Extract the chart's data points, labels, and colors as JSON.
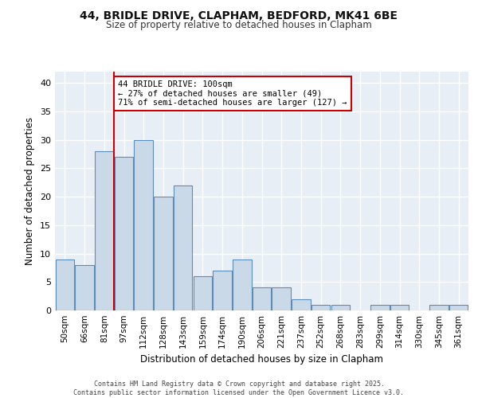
{
  "title1": "44, BRIDLE DRIVE, CLAPHAM, BEDFORD, MK41 6BE",
  "title2": "Size of property relative to detached houses in Clapham",
  "xlabel": "Distribution of detached houses by size in Clapham",
  "ylabel": "Number of detached properties",
  "categories": [
    "50sqm",
    "66sqm",
    "81sqm",
    "97sqm",
    "112sqm",
    "128sqm",
    "143sqm",
    "159sqm",
    "174sqm",
    "190sqm",
    "206sqm",
    "221sqm",
    "237sqm",
    "252sqm",
    "268sqm",
    "283sqm",
    "299sqm",
    "314sqm",
    "330sqm",
    "345sqm",
    "361sqm"
  ],
  "values": [
    9,
    8,
    28,
    27,
    30,
    20,
    22,
    6,
    7,
    9,
    4,
    4,
    2,
    1,
    1,
    0,
    1,
    1,
    0,
    1,
    1
  ],
  "bar_color": "#c9d9e8",
  "bar_edge_color": "#5b8db8",
  "vline_x_index": 3,
  "vline_color": "#cc0000",
  "annotation_text": "44 BRIDLE DRIVE: 100sqm\n← 27% of detached houses are smaller (49)\n71% of semi-detached houses are larger (127) →",
  "annotation_box_color": "#ffffff",
  "annotation_box_edge": "#cc0000",
  "bg_color": "#e8eef5",
  "grid_color": "#ffffff",
  "footer": "Contains HM Land Registry data © Crown copyright and database right 2025.\nContains public sector information licensed under the Open Government Licence v3.0.",
  "ylim": [
    0,
    42
  ],
  "yticks": [
    0,
    5,
    10,
    15,
    20,
    25,
    30,
    35,
    40
  ]
}
